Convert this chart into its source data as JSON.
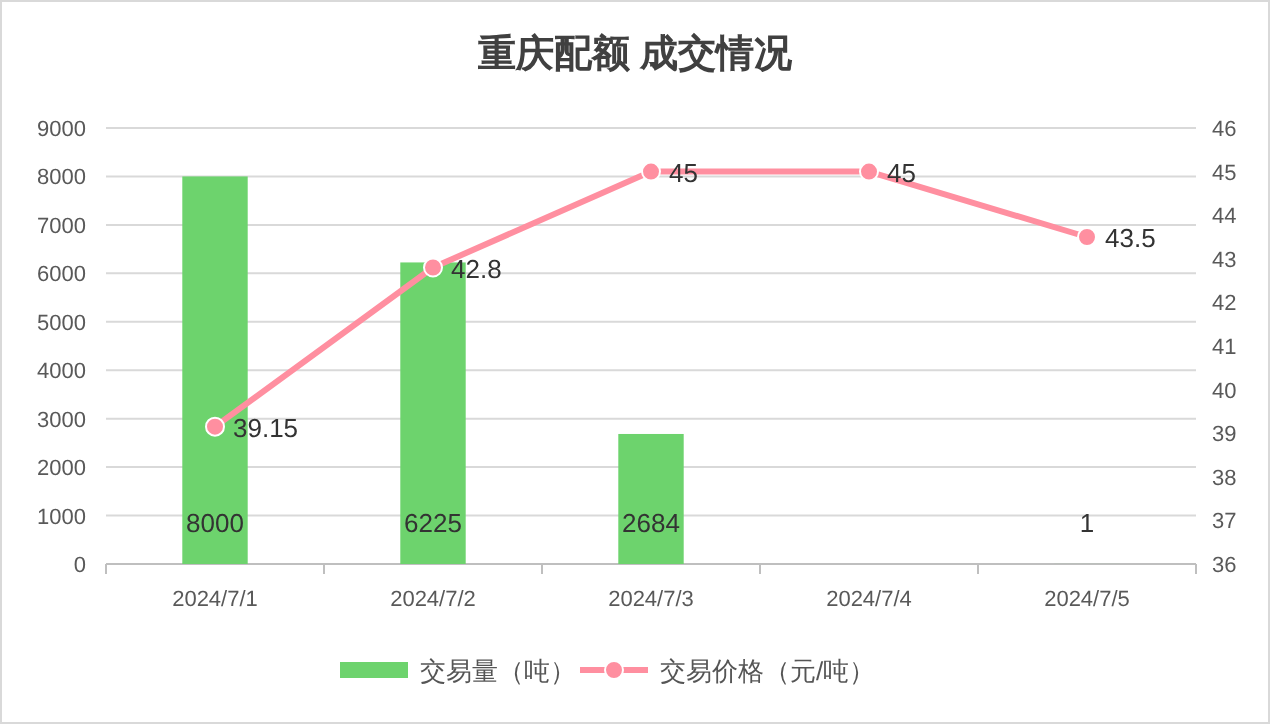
{
  "chart_data": {
    "type": "bar",
    "title": "重庆配额 成交情况",
    "categories": [
      "2024/7/1",
      "2024/7/2",
      "2024/7/3",
      "2024/7/4",
      "2024/7/5"
    ],
    "series": [
      {
        "name": "交易量（吨）",
        "color": "#6dd36d",
        "values": [
          8000,
          6225,
          2684,
          null,
          1
        ]
      },
      {
        "name": "交易价格（元/吨）",
        "type": "line",
        "axis": "y2",
        "color": "#ff8fa0",
        "values": [
          39.15,
          42.8,
          45,
          45,
          43.5
        ]
      }
    ],
    "ylim": [
      0,
      9000
    ],
    "yticks": [
      0,
      1000,
      2000,
      3000,
      4000,
      5000,
      6000,
      7000,
      8000,
      9000
    ],
    "y2lim": [
      36,
      46
    ],
    "y2ticks": [
      36,
      37,
      38,
      39,
      40,
      41,
      42,
      43,
      44,
      45,
      46
    ],
    "grid": "y",
    "legend": "bottom",
    "marker": "circle",
    "data_labels": true
  }
}
